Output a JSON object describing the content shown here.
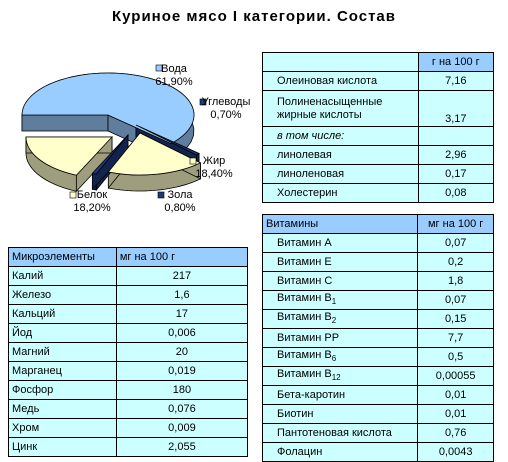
{
  "title": "Куриное мясо I категории. Состав",
  "chart_data": {
    "type": "pie",
    "slices": [
      {
        "label": "Вода",
        "value_label": "61,90%",
        "value": 61.9,
        "color": "#99ccff"
      },
      {
        "label": "Углеводы",
        "value_label": "0,70%",
        "value": 0.7,
        "color": "#1f3a7a"
      },
      {
        "label": "Жир",
        "value_label": "18,40%",
        "value": 18.4,
        "color": "#ffffcc"
      },
      {
        "label": "Зола",
        "value_label": "0,80%",
        "value": 0.8,
        "color": "#1f3a7a"
      },
      {
        "label": "Белок",
        "value_label": "18,20%",
        "value": 18.2,
        "color": "#ffffcc"
      }
    ]
  },
  "fat_table": {
    "header_unit": "г на 100 г",
    "rows": [
      {
        "name": "Олеиновая кислота",
        "value": "7,16"
      },
      {
        "name": "Полиненасыщенные жирные кислоты",
        "value": "3,17"
      },
      {
        "name": "в том числе:",
        "value": ""
      },
      {
        "name": "линолевая",
        "value": "2,96"
      },
      {
        "name": "линоленовая",
        "value": "0,17"
      },
      {
        "name": "Холестерин",
        "value": "0,08"
      }
    ]
  },
  "vitamins_table": {
    "header_name": "Витамины",
    "header_unit": "мг на 100 г",
    "rows": [
      {
        "name": "Витамин A",
        "sub": "",
        "value": "0,07"
      },
      {
        "name": "Витамин E",
        "sub": "",
        "value": "0,2"
      },
      {
        "name": "Витамин C",
        "sub": "",
        "value": "1,8"
      },
      {
        "name": "Витамин B",
        "sub": "1",
        "value": "0,07"
      },
      {
        "name": "Витамин B",
        "sub": "2",
        "value": "0,15"
      },
      {
        "name": "Витамин PP",
        "sub": "",
        "value": "7,7"
      },
      {
        "name": "Витамин B",
        "sub": "6",
        "value": "0,5"
      },
      {
        "name": "Витамин B",
        "sub": "12",
        "value": "0,00055"
      },
      {
        "name": "Бета-каротин",
        "sub": "",
        "value": "0,01"
      },
      {
        "name": "Биотин",
        "sub": "",
        "value": "0,01"
      },
      {
        "name": "Пантотеновая кислота",
        "sub": "",
        "value": "0,76"
      },
      {
        "name": "Фолацин",
        "sub": "",
        "value": "0,0043"
      }
    ]
  },
  "minerals_table": {
    "header_name": "Микроэлементы",
    "header_unit": "мг на 100 г",
    "rows": [
      {
        "name": "Калий",
        "value": "217"
      },
      {
        "name": "Железо",
        "value": "1,6"
      },
      {
        "name": "Кальций",
        "value": "17"
      },
      {
        "name": "Йод",
        "value": "0,006"
      },
      {
        "name": "Магний",
        "value": "20"
      },
      {
        "name": "Марганец",
        "value": "0,019"
      },
      {
        "name": "Фосфор",
        "value": "180"
      },
      {
        "name": "Медь",
        "value": "0,076"
      },
      {
        "name": "Хром",
        "value": "0,009"
      },
      {
        "name": "Цинк",
        "value": "2,055"
      }
    ]
  }
}
